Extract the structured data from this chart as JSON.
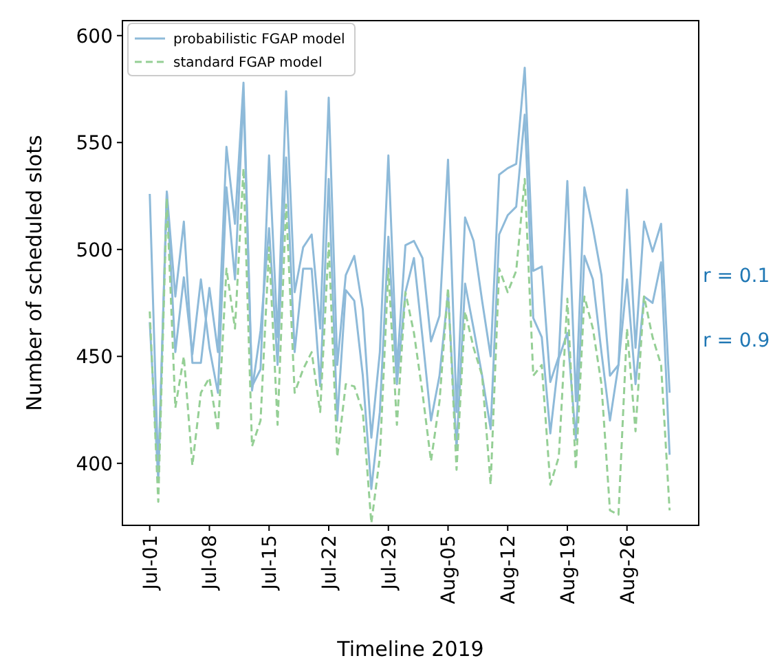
{
  "chart_data": {
    "type": "line",
    "xlabel": "Timeline 2019",
    "ylabel": "Number of scheduled slots",
    "x": [
      "2019-07-01",
      "2019-07-02",
      "2019-07-03",
      "2019-07-04",
      "2019-07-05",
      "2019-07-06",
      "2019-07-07",
      "2019-07-08",
      "2019-07-09",
      "2019-07-10",
      "2019-07-11",
      "2019-07-12",
      "2019-07-13",
      "2019-07-14",
      "2019-07-15",
      "2019-07-16",
      "2019-07-17",
      "2019-07-18",
      "2019-07-19",
      "2019-07-20",
      "2019-07-21",
      "2019-07-22",
      "2019-07-23",
      "2019-07-24",
      "2019-07-25",
      "2019-07-26",
      "2019-07-27",
      "2019-07-28",
      "2019-07-29",
      "2019-07-30",
      "2019-07-31",
      "2019-08-01",
      "2019-08-02",
      "2019-08-03",
      "2019-08-04",
      "2019-08-05",
      "2019-08-06",
      "2019-08-07",
      "2019-08-08",
      "2019-08-09",
      "2019-08-10",
      "2019-08-11",
      "2019-08-12",
      "2019-08-13",
      "2019-08-14",
      "2019-08-15",
      "2019-08-16",
      "2019-08-17",
      "2019-08-18",
      "2019-08-19",
      "2019-08-20",
      "2019-08-21",
      "2019-08-22",
      "2019-08-23",
      "2019-08-24",
      "2019-08-25",
      "2019-08-26",
      "2019-08-27",
      "2019-08-28",
      "2019-08-29",
      "2019-08-30",
      "2019-08-31"
    ],
    "series": [
      {
        "name": "probabilistic FGAP model",
        "color": "#8ebad9",
        "line_style": "solid",
        "values": [
          526,
          395,
          527,
          478,
          513,
          447,
          447,
          482,
          452,
          548,
          512,
          578,
          436,
          444,
          544,
          459,
          574,
          480,
          501,
          507,
          463,
          571,
          446,
          488,
          497,
          472,
          412,
          452,
          544,
          444,
          502,
          504,
          496,
          457,
          469,
          542,
          424,
          515,
          504,
          476,
          450,
          535,
          538,
          540,
          585,
          490,
          492,
          438,
          450,
          532,
          429,
          529,
          510,
          488,
          441,
          446,
          528,
          454,
          513,
          499,
          512,
          433
        ]
      },
      {
        "color": "#8ebad9",
        "line_style": "solid",
        "values": [
          466,
          392,
          527,
          452,
          487,
          451,
          486,
          454,
          433,
          529,
          486,
          572,
          434,
          462,
          510,
          446,
          543,
          452,
          491,
          491,
          436,
          533,
          420,
          481,
          476,
          441,
          388,
          424,
          506,
          437,
          480,
          496,
          459,
          420,
          441,
          480,
          407,
          484,
          463,
          441,
          416,
          507,
          516,
          520,
          563,
          468,
          459,
          414,
          449,
          461,
          411,
          497,
          486,
          452,
          420,
          446,
          486,
          437,
          478,
          475,
          494,
          404
        ]
      },
      {
        "name": "standard FGAP model",
        "color": "#95cf95",
        "line_style": "dashed",
        "values": [
          471,
          382,
          524,
          426,
          450,
          399,
          433,
          440,
          415,
          491,
          463,
          538,
          408,
          420,
          501,
          418,
          521,
          433,
          444,
          452,
          424,
          503,
          403,
          437,
          436,
          424,
          372,
          403,
          491,
          418,
          480,
          461,
          433,
          401,
          429,
          482,
          397,
          471,
          454,
          441,
          390,
          491,
          480,
          490,
          533,
          441,
          446,
          390,
          403,
          477,
          397,
          478,
          463,
          437,
          378,
          376,
          463,
          415,
          478,
          459,
          446,
          378
        ]
      }
    ],
    "xlim": [
      "2019-06-27T19:00",
      "2019-09-03T10:00"
    ],
    "xticks": [
      {
        "value": "2019-07-01",
        "label": "Jul-01"
      },
      {
        "value": "2019-07-08",
        "label": "Jul-08"
      },
      {
        "value": "2019-07-15",
        "label": "Jul-15"
      },
      {
        "value": "2019-07-22",
        "label": "Jul-22"
      },
      {
        "value": "2019-07-29",
        "label": "Jul-29"
      },
      {
        "value": "2019-08-05",
        "label": "Aug-05"
      },
      {
        "value": "2019-08-12",
        "label": "Aug-12"
      },
      {
        "value": "2019-08-19",
        "label": "Aug-19"
      },
      {
        "value": "2019-08-26",
        "label": "Aug-26"
      }
    ],
    "ylim": [
      371,
      607
    ],
    "yticks": [
      400,
      450,
      500,
      550,
      600
    ],
    "annotations": [
      "r = 0.1",
      "r = 0.9"
    ],
    "legend": "top left",
    "grid": false
  }
}
